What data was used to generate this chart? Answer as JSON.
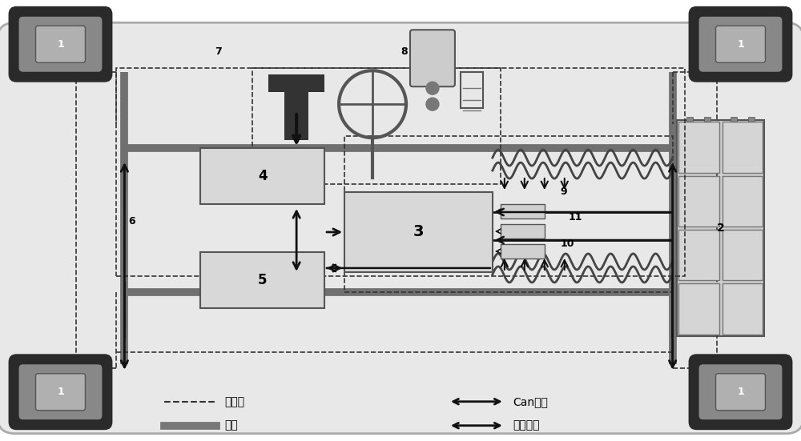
{
  "bg_color": "#f5f5f5",
  "car_fill": "#e0e0e0",
  "car_edge": "#999999",
  "wheel_dark": "#303030",
  "wheel_mid": "#808080",
  "wheel_light": "#c0c0c0",
  "box_fill": "#d8d8d8",
  "box_edge": "#555555",
  "oil_color": "#606060",
  "sig_color": "#222222",
  "black": "#111111",
  "number_fs": 9,
  "legend_fs": 10,
  "wavy_color": "#555555",
  "legend": {
    "sig_label": "信号线",
    "oil_label": "油路",
    "can_label": "Can总线",
    "hv_label": "高压线路"
  }
}
